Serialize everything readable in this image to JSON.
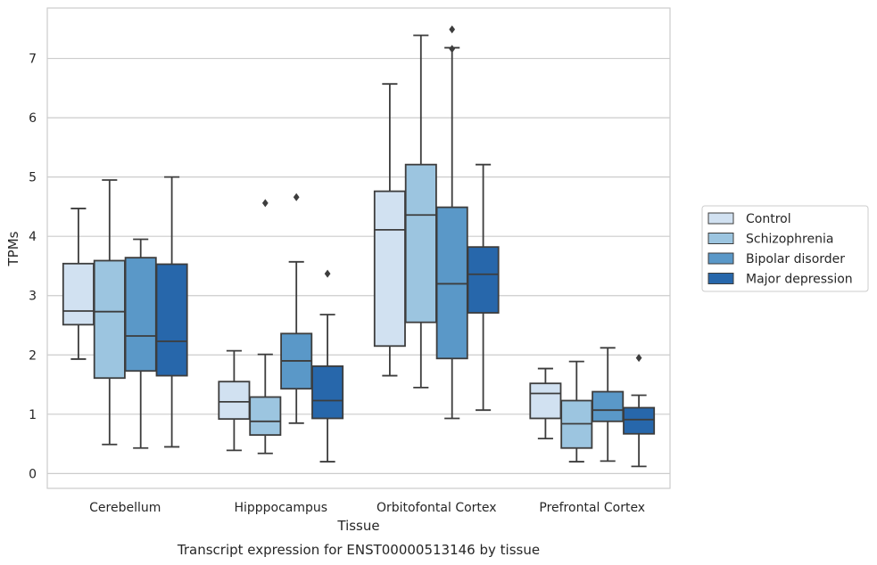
{
  "chart_data": {
    "type": "box",
    "title": "",
    "caption": "Transcript expression for ENST00000513146 by tissue",
    "xlabel": "Tissue",
    "ylabel": "TPMs",
    "ylim": [
      -0.25,
      7.85
    ],
    "yticks": [
      0,
      1,
      2,
      3,
      4,
      5,
      6,
      7
    ],
    "grid": "horizontal",
    "legend_position": "right",
    "categories": [
      "Cerebellum",
      "Hipppocampus",
      "Orbitofontal Cortex",
      "Prefrontal Cortex"
    ],
    "series": [
      {
        "name": "Control",
        "color": "#d1e1f1",
        "boxes": [
          {
            "whisker_low": 1.93,
            "q1": 2.51,
            "median": 2.74,
            "q3": 3.54,
            "whisker_high": 4.47,
            "outliers": []
          },
          {
            "whisker_low": 0.39,
            "q1": 0.92,
            "median": 1.21,
            "q3": 1.55,
            "whisker_high": 2.07,
            "outliers": []
          },
          {
            "whisker_low": 1.65,
            "q1": 2.15,
            "median": 4.11,
            "q3": 4.76,
            "whisker_high": 6.57,
            "outliers": []
          },
          {
            "whisker_low": 0.59,
            "q1": 0.93,
            "median": 1.35,
            "q3": 1.52,
            "whisker_high": 1.77,
            "outliers": []
          }
        ]
      },
      {
        "name": "Schizophrenia",
        "color": "#9cc5e0",
        "boxes": [
          {
            "whisker_low": 0.49,
            "q1": 1.61,
            "median": 2.73,
            "q3": 3.59,
            "whisker_high": 4.95,
            "outliers": []
          },
          {
            "whisker_low": 0.34,
            "q1": 0.65,
            "median": 0.88,
            "q3": 1.29,
            "whisker_high": 2.01,
            "outliers": [
              4.56
            ]
          },
          {
            "whisker_low": 1.45,
            "q1": 2.55,
            "median": 4.36,
            "q3": 5.21,
            "whisker_high": 7.39,
            "outliers": []
          },
          {
            "whisker_low": 0.2,
            "q1": 0.43,
            "median": 0.84,
            "q3": 1.23,
            "whisker_high": 1.89,
            "outliers": []
          }
        ]
      },
      {
        "name": "Bipolar disorder",
        "color": "#5a98c8",
        "boxes": [
          {
            "whisker_low": 0.43,
            "q1": 1.73,
            "median": 2.32,
            "q3": 3.64,
            "whisker_high": 3.95,
            "outliers": []
          },
          {
            "whisker_low": 0.85,
            "q1": 1.43,
            "median": 1.9,
            "q3": 2.36,
            "whisker_high": 3.57,
            "outliers": [
              4.66
            ]
          },
          {
            "whisker_low": 0.93,
            "q1": 1.94,
            "median": 3.2,
            "q3": 4.49,
            "whisker_high": 7.18,
            "outliers": [
              7.49,
              7.16
            ]
          },
          {
            "whisker_low": 0.21,
            "q1": 0.88,
            "median": 1.07,
            "q3": 1.38,
            "whisker_high": 2.12,
            "outliers": []
          }
        ]
      },
      {
        "name": "Major depression",
        "color": "#2767ab",
        "boxes": [
          {
            "whisker_low": 0.45,
            "q1": 1.65,
            "median": 2.23,
            "q3": 3.53,
            "whisker_high": 5.0,
            "outliers": []
          },
          {
            "whisker_low": 0.2,
            "q1": 0.93,
            "median": 1.23,
            "q3": 1.81,
            "whisker_high": 2.68,
            "outliers": [
              3.37
            ]
          },
          {
            "whisker_low": 1.07,
            "q1": 2.71,
            "median": 3.36,
            "q3": 3.82,
            "whisker_high": 5.21,
            "outliers": []
          },
          {
            "whisker_low": 0.12,
            "q1": 0.67,
            "median": 0.91,
            "q3": 1.11,
            "whisker_high": 1.32,
            "outliers": [
              1.95
            ]
          }
        ]
      }
    ]
  }
}
